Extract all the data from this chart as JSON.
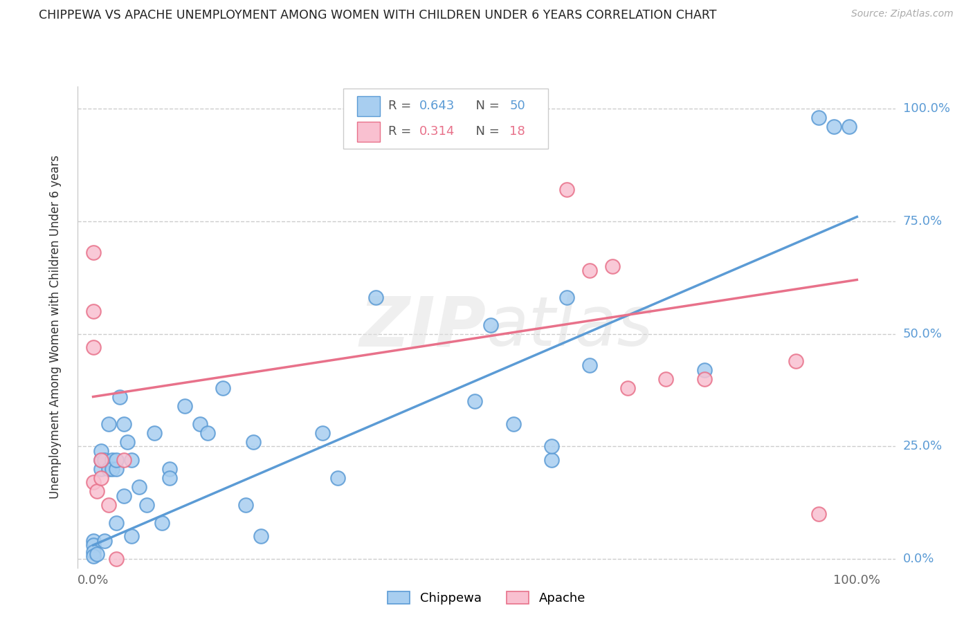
{
  "title": "CHIPPEWA VS APACHE UNEMPLOYMENT AMONG WOMEN WITH CHILDREN UNDER 6 YEARS CORRELATION CHART",
  "source": "Source: ZipAtlas.com",
  "ylabel": "Unemployment Among Women with Children Under 6 years",
  "xlabel": "",
  "watermark": "ZIPatlas",
  "chippewa_R": 0.643,
  "chippewa_N": 50,
  "apache_R": 0.314,
  "apache_N": 18,
  "chippewa_color": "#a8cef0",
  "apache_color": "#f9c0d0",
  "chippewa_line_color": "#5b9bd5",
  "apache_line_color": "#e8718a",
  "background_color": "#ffffff",
  "grid_color": "#cccccc",
  "xlim": [
    -0.02,
    1.05
  ],
  "ylim": [
    -0.02,
    1.05
  ],
  "xtick_labels": [
    "0.0%",
    "100.0%"
  ],
  "ytick_labels": [
    "0.0%",
    "25.0%",
    "50.0%",
    "75.0%",
    "100.0%"
  ],
  "ytick_positions": [
    0.0,
    0.25,
    0.5,
    0.75,
    1.0
  ],
  "chippewa_x": [
    0.0,
    0.0,
    0.0,
    0.0,
    0.005,
    0.01,
    0.01,
    0.01,
    0.015,
    0.015,
    0.02,
    0.02,
    0.025,
    0.025,
    0.03,
    0.03,
    0.03,
    0.035,
    0.04,
    0.04,
    0.045,
    0.05,
    0.05,
    0.06,
    0.07,
    0.08,
    0.09,
    0.1,
    0.1,
    0.12,
    0.14,
    0.15,
    0.17,
    0.2,
    0.21,
    0.22,
    0.3,
    0.32,
    0.37,
    0.5,
    0.52,
    0.55,
    0.6,
    0.6,
    0.62,
    0.65,
    0.8,
    0.95,
    0.97,
    0.99
  ],
  "chippewa_y": [
    0.04,
    0.03,
    0.015,
    0.005,
    0.01,
    0.2,
    0.22,
    0.24,
    0.04,
    0.22,
    0.2,
    0.3,
    0.22,
    0.2,
    0.2,
    0.22,
    0.08,
    0.36,
    0.14,
    0.3,
    0.26,
    0.05,
    0.22,
    0.16,
    0.12,
    0.28,
    0.08,
    0.2,
    0.18,
    0.34,
    0.3,
    0.28,
    0.38,
    0.12,
    0.26,
    0.05,
    0.28,
    0.18,
    0.58,
    0.35,
    0.52,
    0.3,
    0.22,
    0.25,
    0.58,
    0.43,
    0.42,
    0.98,
    0.96,
    0.96
  ],
  "apache_x": [
    0.0,
    0.0,
    0.0,
    0.0,
    0.005,
    0.01,
    0.01,
    0.02,
    0.03,
    0.04,
    0.62,
    0.65,
    0.68,
    0.7,
    0.75,
    0.8,
    0.92,
    0.95
  ],
  "apache_y": [
    0.68,
    0.55,
    0.47,
    0.17,
    0.15,
    0.22,
    0.18,
    0.12,
    0.0,
    0.22,
    0.82,
    0.64,
    0.65,
    0.38,
    0.4,
    0.4,
    0.44,
    0.1
  ],
  "chippewa_trend_x": [
    0.0,
    1.0
  ],
  "chippewa_trend_y": [
    0.03,
    0.76
  ],
  "apache_trend_x": [
    0.0,
    1.0
  ],
  "apache_trend_y": [
    0.36,
    0.62
  ]
}
